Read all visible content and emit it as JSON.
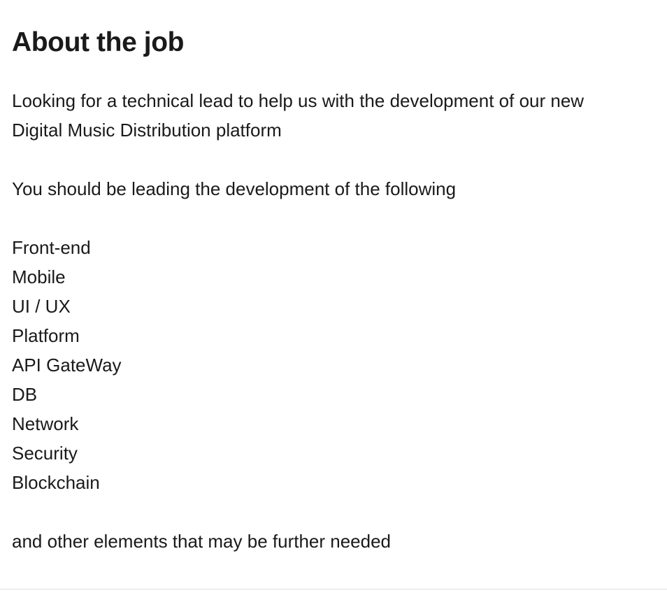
{
  "heading": "About the job",
  "intro_line_1": "Looking for a technical lead to help us with the development of our new",
  "intro_line_2": "Digital Music Distribution platform",
  "lead_sentence": "You should be leading the development of the following",
  "items": [
    "Front-end",
    "Mobile",
    "UI / UX",
    "Platform",
    "API GateWay",
    "DB",
    "Network",
    "Security",
    "Blockchain"
  ],
  "closing_sentence": "and other elements that may be further needed"
}
